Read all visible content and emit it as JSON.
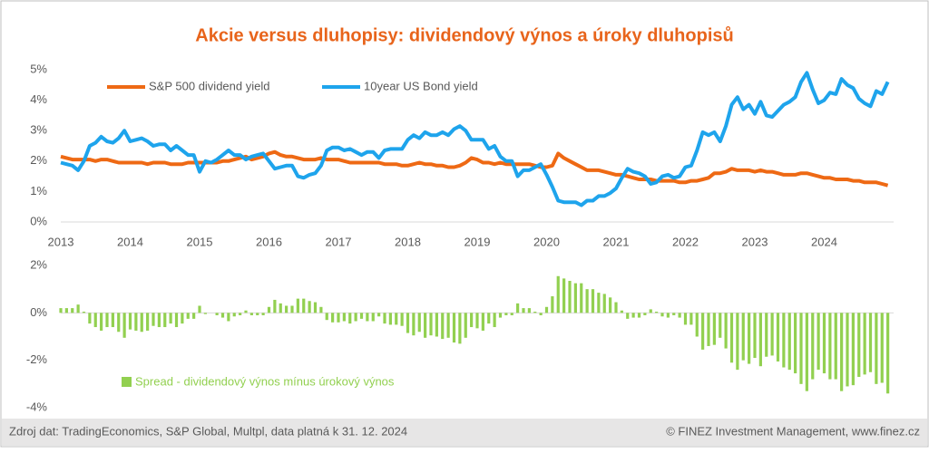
{
  "chart_data": [
    {
      "type": "line",
      "title": "Akcie versus dluhopisy: dividendový výnos a úroky dluhopisů",
      "categories": [
        "2013",
        null,
        null,
        null,
        null,
        null,
        null,
        null,
        null,
        null,
        null,
        null,
        "2014",
        null,
        null,
        null,
        null,
        null,
        null,
        null,
        null,
        null,
        null,
        null,
        "2015",
        null,
        null,
        null,
        null,
        null,
        null,
        null,
        null,
        null,
        null,
        null,
        "2016",
        null,
        null,
        null,
        null,
        null,
        null,
        null,
        null,
        null,
        null,
        null,
        "2017",
        null,
        null,
        null,
        null,
        null,
        null,
        null,
        null,
        null,
        null,
        null,
        "2018",
        null,
        null,
        null,
        null,
        null,
        null,
        null,
        null,
        null,
        null,
        null,
        "2019",
        null,
        null,
        null,
        null,
        null,
        null,
        null,
        null,
        null,
        null,
        null,
        "2020",
        null,
        null,
        null,
        null,
        null,
        null,
        null,
        null,
        null,
        null,
        null,
        "2021",
        null,
        null,
        null,
        null,
        null,
        null,
        null,
        null,
        null,
        null,
        null,
        "2022",
        null,
        null,
        null,
        null,
        null,
        null,
        null,
        null,
        null,
        null,
        null,
        "2023",
        null,
        null,
        null,
        null,
        null,
        null,
        null,
        null,
        null,
        null,
        null,
        "2024",
        null,
        null,
        null,
        null,
        null,
        null,
        null,
        null,
        null,
        null,
        null
      ],
      "ylim": [
        0,
        5
      ],
      "yticks": [
        {
          "value": 0,
          "label": "0%"
        },
        {
          "value": 1,
          "label": "1%"
        },
        {
          "value": 2,
          "label": "2%"
        },
        {
          "value": 3,
          "label": "3%"
        },
        {
          "value": 4,
          "label": "4%"
        },
        {
          "value": 5,
          "label": "5%"
        }
      ],
      "series": [
        {
          "name": "S&P 500 dividend yield",
          "color": "#ee6914",
          "values": [
            2.15,
            2.1,
            2.05,
            2.05,
            2.05,
            2.05,
            2.0,
            2.05,
            2.05,
            2.0,
            1.95,
            1.95,
            1.95,
            1.95,
            1.95,
            1.9,
            1.95,
            1.95,
            1.95,
            1.9,
            1.9,
            1.9,
            1.95,
            1.95,
            1.95,
            1.95,
            1.95,
            1.95,
            2.0,
            2.0,
            2.05,
            2.1,
            2.15,
            2.05,
            2.1,
            2.15,
            2.25,
            2.3,
            2.2,
            2.15,
            2.15,
            2.1,
            2.05,
            2.05,
            2.05,
            2.1,
            2.05,
            2.05,
            2.05,
            2.0,
            1.95,
            1.95,
            1.95,
            1.95,
            1.95,
            1.95,
            1.9,
            1.9,
            1.9,
            1.85,
            1.85,
            1.9,
            1.95,
            1.9,
            1.9,
            1.85,
            1.85,
            1.8,
            1.8,
            1.85,
            1.95,
            2.1,
            2.05,
            1.95,
            1.95,
            1.9,
            1.95,
            1.9,
            1.9,
            1.9,
            1.9,
            1.9,
            1.85,
            1.8,
            1.8,
            1.85,
            2.25,
            2.1,
            2.0,
            1.9,
            1.8,
            1.7,
            1.7,
            1.7,
            1.65,
            1.6,
            1.55,
            1.55,
            1.5,
            1.45,
            1.4,
            1.4,
            1.4,
            1.35,
            1.35,
            1.35,
            1.35,
            1.3,
            1.3,
            1.35,
            1.35,
            1.4,
            1.45,
            1.6,
            1.6,
            1.65,
            1.75,
            1.7,
            1.7,
            1.7,
            1.65,
            1.7,
            1.65,
            1.65,
            1.6,
            1.55,
            1.55,
            1.55,
            1.6,
            1.6,
            1.55,
            1.5,
            1.45,
            1.45,
            1.4,
            1.4,
            1.4,
            1.35,
            1.35,
            1.3,
            1.3,
            1.3,
            1.25,
            1.2
          ]
        },
        {
          "name": "10year US Bond yield",
          "color": "#1ea4ec",
          "values": [
            1.95,
            1.9,
            1.85,
            1.7,
            2.0,
            2.5,
            2.6,
            2.8,
            2.65,
            2.6,
            2.75,
            3.0,
            2.65,
            2.7,
            2.75,
            2.65,
            2.5,
            2.55,
            2.55,
            2.35,
            2.5,
            2.35,
            2.2,
            2.2,
            1.65,
            2.0,
            1.95,
            2.05,
            2.2,
            2.35,
            2.2,
            2.2,
            2.05,
            2.15,
            2.2,
            2.25,
            2.0,
            1.75,
            1.8,
            1.85,
            1.85,
            1.5,
            1.45,
            1.55,
            1.6,
            1.85,
            2.35,
            2.45,
            2.45,
            2.35,
            2.4,
            2.3,
            2.2,
            2.3,
            2.3,
            2.1,
            2.35,
            2.4,
            2.4,
            2.4,
            2.7,
            2.85,
            2.75,
            2.95,
            2.85,
            2.85,
            2.95,
            2.85,
            3.05,
            3.15,
            3.0,
            2.7,
            2.7,
            2.7,
            2.4,
            2.5,
            2.15,
            2.0,
            2.0,
            1.5,
            1.7,
            1.7,
            1.8,
            1.9,
            1.55,
            1.15,
            0.7,
            0.65,
            0.65,
            0.65,
            0.55,
            0.7,
            0.7,
            0.85,
            0.85,
            0.95,
            1.1,
            1.45,
            1.75,
            1.65,
            1.6,
            1.5,
            1.25,
            1.3,
            1.5,
            1.55,
            1.45,
            1.5,
            1.8,
            1.85,
            2.35,
            2.95,
            2.85,
            2.95,
            2.65,
            3.15,
            3.85,
            4.1,
            3.7,
            3.85,
            3.55,
            3.95,
            3.5,
            3.45,
            3.65,
            3.85,
            3.95,
            4.1,
            4.6,
            4.9,
            4.35,
            3.9,
            4.0,
            4.25,
            4.2,
            4.7,
            4.5,
            4.4,
            4.05,
            3.9,
            3.8,
            4.3,
            4.2,
            4.6
          ]
        }
      ]
    },
    {
      "type": "bar",
      "ylim": [
        -4,
        2
      ],
      "yticks": [
        {
          "value": -4,
          "label": "-4%"
        },
        {
          "value": -2,
          "label": "-2%"
        },
        {
          "value": 0,
          "label": "0%"
        },
        {
          "value": 2,
          "label": "2%"
        }
      ],
      "series": [
        {
          "name": "Spread - dividendový výnos mínus úrokový výnos",
          "color": "#92d050",
          "values": [
            0.2,
            0.2,
            0.2,
            0.35,
            0.05,
            -0.45,
            -0.6,
            -0.75,
            -0.6,
            -0.6,
            -0.8,
            -1.05,
            -0.7,
            -0.75,
            -0.8,
            -0.75,
            -0.55,
            -0.6,
            -0.6,
            -0.45,
            -0.6,
            -0.45,
            -0.25,
            -0.25,
            0.3,
            -0.05,
            0,
            -0.1,
            -0.2,
            -0.35,
            -0.15,
            -0.1,
            0.1,
            -0.1,
            -0.1,
            -0.1,
            0.25,
            0.55,
            0.4,
            0.3,
            0.3,
            0.6,
            0.6,
            0.5,
            0.45,
            0.25,
            -0.3,
            -0.4,
            -0.4,
            -0.35,
            -0.45,
            -0.35,
            -0.25,
            -0.35,
            -0.35,
            -0.15,
            -0.45,
            -0.5,
            -0.5,
            -0.55,
            -0.85,
            -0.95,
            -0.8,
            -1.05,
            -0.95,
            -1.0,
            -1.1,
            -1.05,
            -1.25,
            -1.3,
            -1.05,
            -0.6,
            -0.65,
            -0.75,
            -0.45,
            -0.6,
            -0.2,
            -0.1,
            -0.1,
            0.4,
            0.2,
            0.2,
            0.05,
            -0.1,
            0.25,
            0.7,
            1.55,
            1.45,
            1.35,
            1.25,
            1.25,
            1.0,
            1.0,
            0.85,
            0.8,
            0.65,
            0.45,
            0.1,
            -0.25,
            -0.2,
            -0.2,
            -0.1,
            0.15,
            0.05,
            -0.15,
            -0.2,
            -0.1,
            -0.2,
            -0.5,
            -0.5,
            -1.0,
            -1.55,
            -1.4,
            -1.35,
            -1.05,
            -1.5,
            -2.1,
            -2.4,
            -2.0,
            -2.15,
            -1.9,
            -2.25,
            -1.85,
            -1.8,
            -2.05,
            -2.3,
            -2.4,
            -2.55,
            -3.0,
            -3.3,
            -2.8,
            -2.4,
            -2.55,
            -2.8,
            -2.8,
            -3.3,
            -3.1,
            -3.05,
            -2.7,
            -2.6,
            -2.5,
            -3.0,
            -2.95,
            -3.4
          ]
        }
      ]
    }
  ],
  "footer": {
    "source": "Zdroj dat: TradingEconomics, S&P Global, Multpl, data platná k 31. 12. 2024",
    "credit": "© FINEZ Investment Management, www.finez.cz"
  }
}
